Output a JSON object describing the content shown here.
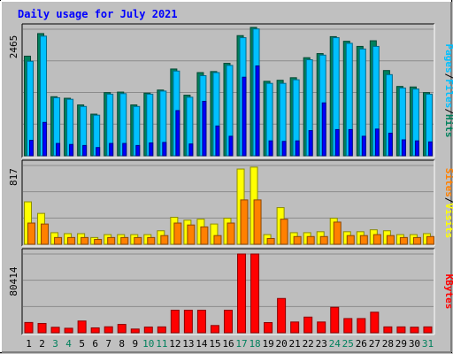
{
  "title": "Daily usage for July 2021",
  "colors": {
    "background": "#c0c0c0",
    "plot_bg": "#bebebe",
    "hits": "#00805c",
    "files": "#00c0ff",
    "pages": "#0000ff",
    "visits": "#ffff00",
    "sites": "#ff8000",
    "kbytes": "#ff0000",
    "title": "#0000ff",
    "weekend_day": "#00805c"
  },
  "chart_data": [
    {
      "type": "bar",
      "panel": "hits-files-pages",
      "categories": [
        "1",
        "2",
        "3",
        "4",
        "5",
        "6",
        "7",
        "8",
        "9",
        "10",
        "11",
        "12",
        "13",
        "14",
        "15",
        "16",
        "17",
        "18",
        "19",
        "20",
        "21",
        "22",
        "23",
        "24",
        "25",
        "26",
        "27",
        "28",
        "29",
        "30",
        "31"
      ],
      "weekend_days": [
        "3",
        "4",
        "10",
        "11",
        "17",
        "18",
        "24",
        "25",
        "31"
      ],
      "ymax_label": "2465",
      "ylim": [
        0,
        2465
      ],
      "legend": [
        {
          "label": "Hits",
          "color": "#00805c"
        },
        {
          "label": "/",
          "color": "#000000"
        },
        {
          "label": "Files",
          "color": "#00c0ff"
        },
        {
          "label": "/",
          "color": "#000000"
        },
        {
          "label": "Pages",
          "color": "#00c0ff"
        }
      ],
      "series": [
        {
          "name": "Hits",
          "color": "#00805c",
          "values": [
            1940,
            2380,
            1150,
            1120,
            990,
            810,
            1230,
            1240,
            990,
            1220,
            1280,
            1690,
            1180,
            1620,
            1640,
            1800,
            2340,
            2500,
            1450,
            1470,
            1520,
            1910,
            1990,
            2320,
            2230,
            2130,
            2240,
            1660,
            1350,
            1340,
            1230
          ]
        },
        {
          "name": "Files",
          "color": "#00c0ff",
          "values": [
            1840,
            2330,
            1130,
            1100,
            960,
            790,
            1200,
            1210,
            960,
            1200,
            1260,
            1650,
            1140,
            1560,
            1620,
            1760,
            2300,
            2470,
            1410,
            1410,
            1480,
            1870,
            1960,
            2300,
            2190,
            2080,
            2130,
            1580,
            1320,
            1300,
            1200
          ]
        },
        {
          "name": "Pages",
          "color": "#0000ff",
          "values": [
            300,
            650,
            240,
            220,
            200,
            160,
            240,
            240,
            200,
            250,
            260,
            880,
            230,
            1060,
            580,
            380,
            1530,
            1750,
            290,
            280,
            290,
            490,
            1030,
            510,
            510,
            380,
            520,
            440,
            310,
            290,
            270
          ]
        }
      ]
    },
    {
      "type": "bar",
      "panel": "visits-sites",
      "categories": [
        "1",
        "2",
        "3",
        "4",
        "5",
        "6",
        "7",
        "8",
        "9",
        "10",
        "11",
        "12",
        "13",
        "14",
        "15",
        "16",
        "17",
        "18",
        "19",
        "20",
        "21",
        "22",
        "23",
        "24",
        "25",
        "26",
        "27",
        "28",
        "29",
        "30",
        "31"
      ],
      "ymax_label": "817",
      "ylim": [
        0,
        817
      ],
      "legend": [
        {
          "label": "Visits",
          "color": "#ffff00"
        },
        {
          "label": "/",
          "color": "#000000"
        },
        {
          "label": "Sites",
          "color": "#ff8000"
        }
      ],
      "series": [
        {
          "name": "Visits",
          "color": "#ffff00",
          "values": [
            440,
            320,
            120,
            110,
            110,
            70,
            100,
            100,
            100,
            100,
            140,
            280,
            250,
            260,
            210,
            270,
            780,
            800,
            100,
            380,
            120,
            120,
            130,
            270,
            130,
            130,
            150,
            140,
            100,
            100,
            110
          ]
        },
        {
          "name": "Sites",
          "color": "#ff8000",
          "values": [
            220,
            210,
            70,
            70,
            70,
            50,
            70,
            70,
            70,
            70,
            90,
            220,
            200,
            180,
            90,
            220,
            460,
            460,
            60,
            260,
            80,
            80,
            80,
            230,
            90,
            90,
            100,
            90,
            70,
            70,
            80
          ]
        }
      ]
    },
    {
      "type": "bar",
      "panel": "kbytes",
      "categories": [
        "1",
        "2",
        "3",
        "4",
        "5",
        "6",
        "7",
        "8",
        "9",
        "10",
        "11",
        "12",
        "13",
        "14",
        "15",
        "16",
        "17",
        "18",
        "19",
        "20",
        "21",
        "22",
        "23",
        "24",
        "25",
        "26",
        "27",
        "28",
        "29",
        "30",
        "31"
      ],
      "ymax_label": "80414",
      "ylim": [
        0,
        80414
      ],
      "legend": [
        {
          "label": "KBytes",
          "color": "#ff0000"
        }
      ],
      "series": [
        {
          "name": "KBytes",
          "color": "#ff0000",
          "values": [
            10500,
            9500,
            5600,
            4600,
            12000,
            5000,
            6100,
            8500,
            3800,
            5800,
            6000,
            23000,
            23000,
            23000,
            7400,
            23000,
            80414,
            80414,
            10400,
            35000,
            11000,
            16000,
            11000,
            26000,
            14500,
            14500,
            21000,
            6000,
            6000,
            5700,
            6000
          ]
        }
      ]
    }
  ]
}
